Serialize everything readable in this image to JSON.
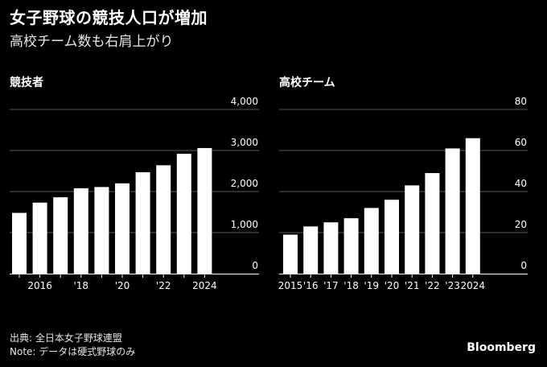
{
  "title": "女子野球の競技人口が増加",
  "subtitle": "高校チーム数も右肩上がり",
  "source": "出典: 全日本女子野球連盟",
  "note": "Note: データは硬式野球のみ",
  "brand": "Bloomberg",
  "colors": {
    "background": "#000000",
    "bar": "#ffffff",
    "text": "#ffffff"
  },
  "chart_data": [
    {
      "type": "bar",
      "title": "競技者",
      "categories": [
        "2015",
        "2016",
        "2017",
        "2018",
        "2019",
        "2020",
        "2021",
        "2022",
        "2023",
        "2024"
      ],
      "x_tick_labels": [
        "",
        "2016",
        "",
        "'18",
        "",
        "'20",
        "",
        "'22",
        "",
        "2024"
      ],
      "values": [
        1480,
        1730,
        1860,
        2080,
        2110,
        2200,
        2470,
        2640,
        2920,
        3060
      ],
      "y_ticks": [
        "0",
        "1,000",
        "2,000",
        "3,000",
        "4,000"
      ],
      "ylim": [
        0,
        4000
      ],
      "xlabel": "",
      "ylabel": ""
    },
    {
      "type": "bar",
      "title": "高校チーム",
      "categories": [
        "2015",
        "2016",
        "2017",
        "2018",
        "2019",
        "2020",
        "2021",
        "2022",
        "2023",
        "2024"
      ],
      "x_tick_labels": [
        "2015",
        "'16",
        "'17",
        "'18",
        "'19",
        "'20",
        "'21",
        "'22",
        "'23",
        "2024"
      ],
      "values": [
        19,
        23,
        25,
        27,
        32,
        36,
        43,
        49,
        61,
        66
      ],
      "y_ticks": [
        "0",
        "20",
        "40",
        "60",
        "80"
      ],
      "ylim": [
        0,
        80
      ],
      "xlabel": "",
      "ylabel": ""
    }
  ]
}
